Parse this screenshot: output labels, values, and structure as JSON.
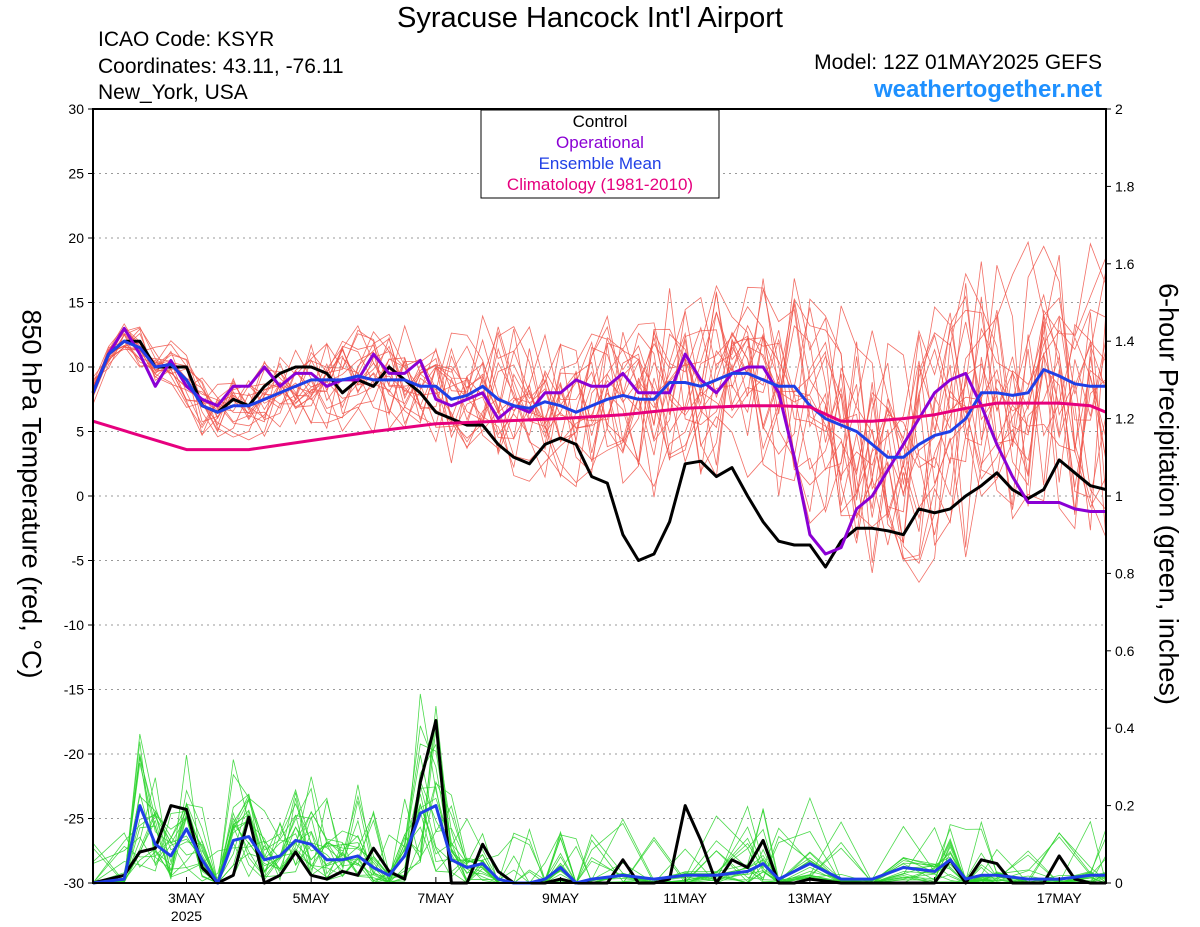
{
  "header": {
    "title": "Syracuse Hancock Int'l Airport",
    "icao": "ICAO Code: KSYR",
    "coordinates": "Coordinates: 43.11, -76.11",
    "location": "New_York, USA",
    "model": "Model: 12Z 01MAY2025 GEFS",
    "site": "weathertogether.net"
  },
  "chart_data": {
    "type": "line",
    "title": "Syracuse Hancock Int'l Airport",
    "ylabel_left": "850 hPa Temperature (red, °C)",
    "ylabel_right": "6-hour Precipitation (green, inches)",
    "ylim_left": [
      -30,
      30
    ],
    "ylim_right": [
      0,
      2
    ],
    "xlim_days": [
      1.5,
      17.75
    ],
    "yticks_left": [
      "30",
      "25",
      "20",
      "15",
      "10",
      "5",
      "0",
      "-5",
      "-10",
      "-15",
      "-20",
      "-25",
      "-30"
    ],
    "yticks_right": [
      "2",
      "1.8",
      "1.6",
      "1.4",
      "1.2",
      "1",
      "0.8",
      "0.6",
      "0.4",
      "0.2",
      "0"
    ],
    "xticks": [
      {
        "day": 3,
        "label": "3MAY",
        "sub": "2025"
      },
      {
        "day": 5,
        "label": "5MAY",
        "sub": ""
      },
      {
        "day": 7,
        "label": "7MAY",
        "sub": ""
      },
      {
        "day": 9,
        "label": "9MAY",
        "sub": ""
      },
      {
        "day": 11,
        "label": "11MAY",
        "sub": ""
      },
      {
        "day": 13,
        "label": "13MAY",
        "sub": ""
      },
      {
        "day": 15,
        "label": "15MAY",
        "sub": ""
      },
      {
        "day": 17,
        "label": "17MAY",
        "sub": ""
      }
    ],
    "grid": "dotted horizontal",
    "legend_position": "top-center",
    "legend": [
      {
        "label": "Control",
        "color": "#000000"
      },
      {
        "label": "Operational",
        "color": "#8a00d4"
      },
      {
        "label": "Ensemble Mean",
        "color": "#1f3fe6"
      },
      {
        "label": "Climatology (1981-2010)",
        "color": "#e6007e"
      }
    ],
    "temperature_series": [
      {
        "key": "control",
        "color": "#000000",
        "x": [
          1.5,
          1.75,
          2,
          2.25,
          2.5,
          2.75,
          3,
          3.25,
          3.5,
          3.75,
          4,
          4.25,
          4.5,
          4.75,
          5,
          5.25,
          5.5,
          5.75,
          6,
          6.25,
          6.5,
          6.75,
          7,
          7.25,
          7.5,
          7.75,
          8,
          8.25,
          8.5,
          8.75,
          9,
          9.25,
          9.5,
          9.75,
          10,
          10.25,
          10.5,
          10.75,
          11,
          11.25,
          11.5,
          11.75,
          12,
          12.25,
          12.5,
          12.75,
          13,
          13.25,
          13.5,
          13.75,
          14,
          14.25,
          14.5,
          14.75,
          15,
          15.25,
          15.5,
          15.75,
          16,
          16.25,
          16.5,
          16.75,
          17,
          17.25,
          17.5,
          17.75
        ],
        "y": [
          8,
          11,
          12,
          12,
          10,
          10,
          10,
          7,
          6.5,
          7.5,
          7,
          8.5,
          9.5,
          10,
          10,
          9.5,
          8,
          9,
          8.5,
          10,
          9,
          8,
          6.5,
          6,
          5.5,
          5.5,
          4,
          3,
          2.5,
          4,
          4.5,
          4,
          1.5,
          1,
          -3,
          -5,
          -4.5,
          -2,
          2.5,
          2.7,
          1.5,
          2.2,
          0,
          -2,
          -3.5,
          -3.8,
          -3.8,
          -5.5,
          -3.5,
          -2.5,
          -2.5,
          -2.7,
          -3,
          -1,
          -1.3,
          -1,
          0,
          0.8,
          1.8,
          0.5,
          -0.2,
          0.5,
          2.8,
          1.8,
          0.8,
          0.5
        ]
      },
      {
        "key": "operational",
        "color": "#8a00d4",
        "x": [
          1.5,
          1.75,
          2,
          2.25,
          2.5,
          2.75,
          3,
          3.25,
          3.5,
          3.75,
          4,
          4.25,
          4.5,
          4.75,
          5,
          5.25,
          5.5,
          5.75,
          6,
          6.25,
          6.5,
          6.75,
          7,
          7.25,
          7.5,
          7.75,
          8,
          8.25,
          8.5,
          8.75,
          9,
          9.25,
          9.5,
          9.75,
          10,
          10.25,
          10.5,
          10.75,
          11,
          11.25,
          11.5,
          11.75,
          12,
          12.25,
          12.5,
          12.75,
          13,
          13.25,
          13.5,
          13.75,
          14,
          14.25,
          14.5,
          14.75,
          15,
          15.25,
          15.5,
          15.75,
          16,
          16.25,
          16.5,
          16.75,
          17,
          17.25,
          17.5,
          17.75
        ],
        "y": [
          8,
          11,
          13,
          11,
          8.5,
          10.5,
          8.5,
          7.5,
          7,
          8.5,
          8.5,
          10,
          8.5,
          9.5,
          9.5,
          8.5,
          9,
          9,
          11,
          9.5,
          9.5,
          10.5,
          7.5,
          7,
          7.5,
          8,
          6,
          7,
          6.5,
          8,
          8,
          9,
          8.5,
          8.5,
          9.5,
          8,
          8,
          8,
          11,
          9,
          8,
          9.5,
          10,
          10,
          8,
          3,
          -3,
          -4.5,
          -4,
          -1,
          0,
          2,
          4,
          6,
          8,
          9,
          9.5,
          7,
          4,
          1.5,
          -0.5,
          -0.5,
          -0.5,
          -1,
          -1.2,
          -1.2
        ]
      },
      {
        "key": "ensemble_mean",
        "color": "#1f3fe6",
        "x": [
          1.5,
          1.75,
          2,
          2.25,
          2.5,
          2.75,
          3,
          3.25,
          3.5,
          3.75,
          4,
          4.25,
          4.5,
          4.75,
          5,
          5.25,
          5.5,
          5.75,
          6,
          6.25,
          6.5,
          6.75,
          7,
          7.25,
          7.5,
          7.75,
          8,
          8.25,
          8.5,
          8.75,
          9,
          9.25,
          9.5,
          9.75,
          10,
          10.25,
          10.5,
          10.75,
          11,
          11.25,
          11.5,
          11.75,
          12,
          12.25,
          12.5,
          12.75,
          13,
          13.25,
          13.5,
          13.75,
          14,
          14.25,
          14.5,
          14.75,
          15,
          15.25,
          15.5,
          15.75,
          16,
          16.25,
          16.5,
          16.75,
          17,
          17.25,
          17.5,
          17.75
        ],
        "y": [
          8,
          11,
          12,
          11.5,
          10,
          10.2,
          9,
          7,
          6.5,
          7,
          7,
          7.5,
          8,
          8.5,
          9,
          9,
          9,
          9.3,
          9,
          9,
          9,
          8.5,
          8.5,
          7.5,
          7.8,
          8.5,
          7.5,
          7,
          6.8,
          7.3,
          7,
          6.5,
          7,
          7.5,
          7.8,
          7.5,
          7.5,
          8.8,
          8.8,
          8.5,
          9,
          9.5,
          9.5,
          9,
          8.5,
          8.5,
          7,
          6,
          5.5,
          5,
          4,
          3,
          3,
          4,
          4.7,
          5,
          6,
          8,
          8,
          7.8,
          8,
          9.8,
          9.3,
          8.7,
          8.5,
          8.5
        ]
      },
      {
        "key": "climatology",
        "color": "#e6007e",
        "x": [
          1.5,
          3,
          4,
          5,
          6,
          7,
          8,
          9,
          10,
          11,
          12,
          12.5,
          13,
          13.5,
          14,
          14.5,
          15,
          15.5,
          16,
          16.5,
          17,
          17.5,
          17.75
        ],
        "y": [
          5.8,
          3.6,
          3.6,
          4.3,
          5,
          5.6,
          5.8,
          6,
          6.3,
          6.8,
          7,
          7,
          6.9,
          5.8,
          5.8,
          6,
          6.3,
          6.8,
          7.2,
          7.2,
          7.2,
          7,
          6.5
        ]
      }
    ],
    "precipitation_series": [
      {
        "key": "control",
        "color": "#000000",
        "x": [
          1.5,
          2,
          2.25,
          2.5,
          2.75,
          3,
          3.25,
          3.5,
          3.75,
          4,
          4.25,
          4.5,
          4.75,
          5,
          5.25,
          5.5,
          5.75,
          6,
          6.25,
          6.5,
          6.75,
          7,
          7.25,
          7.5,
          7.75,
          8,
          8.25,
          8.5,
          8.75,
          9,
          9.25,
          9.5,
          9.75,
          10,
          10.25,
          10.5,
          10.75,
          11,
          11.25,
          11.5,
          11.75,
          12,
          12.25,
          12.5,
          12.75,
          13,
          13.5,
          14,
          14.5,
          15,
          15.25,
          15.5,
          15.75,
          16,
          16.25,
          16.5,
          16.75,
          17,
          17.25,
          17.5,
          17.75
        ],
        "y": [
          0,
          0.02,
          0.08,
          0.09,
          0.2,
          0.19,
          0.04,
          0,
          0.02,
          0.17,
          0,
          0.02,
          0.08,
          0.02,
          0.01,
          0.03,
          0.02,
          0.09,
          0.03,
          0.01,
          0.26,
          0.42,
          0,
          0,
          0.1,
          0.03,
          0,
          0,
          0,
          0.01,
          0,
          0,
          0,
          0.06,
          0,
          0,
          0.01,
          0.2,
          0.11,
          0,
          0.06,
          0.04,
          0.11,
          0,
          0,
          0.01,
          0,
          0,
          0,
          0,
          0.06,
          0,
          0.06,
          0.05,
          0,
          0,
          0,
          0.07,
          0.01,
          0,
          0
        ]
      },
      {
        "key": "ensemble_mean",
        "color": "#1f3fe6",
        "x": [
          1.5,
          2,
          2.25,
          2.5,
          2.75,
          3,
          3.25,
          3.5,
          3.75,
          4,
          4.25,
          4.5,
          4.75,
          5,
          5.25,
          5.5,
          5.75,
          6,
          6.25,
          6.5,
          6.75,
          7,
          7.25,
          7.5,
          7.75,
          8,
          8.25,
          8.5,
          8.75,
          9,
          9.25,
          9.5,
          10,
          10.5,
          11,
          11.5,
          12,
          12.25,
          12.5,
          13,
          13.5,
          14,
          14.5,
          15,
          15.25,
          15.5,
          15.75,
          16,
          16.5,
          17,
          17.5,
          17.75
        ],
        "y": [
          0,
          0.01,
          0.2,
          0.1,
          0.07,
          0.14,
          0.06,
          0,
          0.11,
          0.12,
          0.06,
          0.07,
          0.11,
          0.1,
          0.06,
          0.06,
          0.07,
          0.04,
          0.02,
          0.07,
          0.18,
          0.2,
          0.06,
          0.04,
          0.05,
          0.01,
          0,
          0,
          0.01,
          0.04,
          0,
          0.01,
          0.02,
          0.01,
          0.02,
          0.02,
          0.03,
          0.05,
          0.01,
          0.05,
          0.01,
          0.01,
          0.04,
          0.03,
          0.06,
          0.01,
          0.02,
          0.02,
          0.01,
          0.01,
          0.02,
          0.02
        ]
      }
    ]
  }
}
